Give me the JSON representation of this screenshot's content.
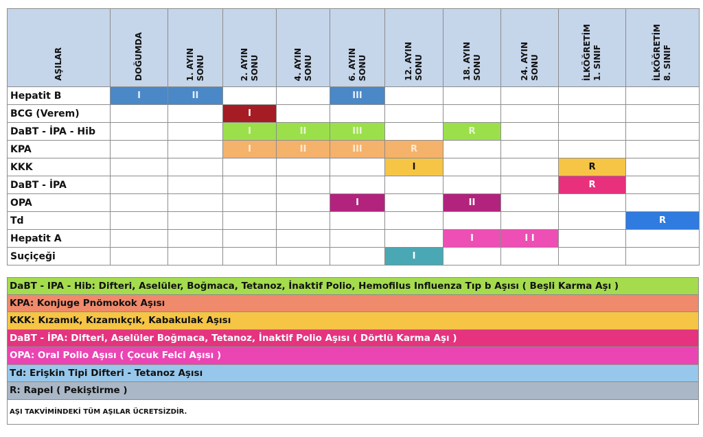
{
  "header": {
    "vaccines_label": "AŞILAR",
    "columns": [
      "DOĞUMDA",
      "1. AYIN\nSONU",
      "2. AYIN\nSONU",
      "4. AYIN\nSONU",
      "6. AYIN\nSONU",
      "12. AYIN\nSONU",
      "18. AYIN\nSONU",
      "24. AYIN\nSONU",
      "İLKÖĞRETİM\n1. SINIF",
      "İLKÖĞRETİM\n8. SINIF"
    ]
  },
  "rows": [
    {
      "name": "Hepatit B",
      "doses": [
        "I",
        "II",
        "",
        "",
        "III",
        "",
        "",
        "",
        "",
        ""
      ],
      "color": "#4a88c7",
      "text_color": "#e8eef8"
    },
    {
      "name": "BCG (Verem)",
      "doses": [
        "",
        "",
        "I",
        "",
        "",
        "",
        "",
        "",
        "",
        ""
      ],
      "color": "#a51c24",
      "text_color": "#ffffff"
    },
    {
      "name": "DaBT - İPA - Hib",
      "doses": [
        "",
        "",
        "I",
        "II",
        "III",
        "",
        "R",
        "",
        "",
        ""
      ],
      "color": "#9be04a",
      "text_color": "#e8f6d4"
    },
    {
      "name": "KPA",
      "doses": [
        "",
        "",
        "I",
        "II",
        "III",
        "R",
        "",
        "",
        "",
        ""
      ],
      "color": "#f5b26a",
      "text_color": "#fdebd6"
    },
    {
      "name": "KKK",
      "doses": [
        "",
        "",
        "",
        "",
        "",
        "I",
        "",
        "",
        "R",
        ""
      ],
      "color": "#f6c545",
      "text_color": "#111111"
    },
    {
      "name": "DaBT - İPA",
      "doses": [
        "",
        "",
        "",
        "",
        "",
        "",
        "",
        "",
        "R",
        ""
      ],
      "color": "#e8307c",
      "text_color": "#ffffff"
    },
    {
      "name": "OPA",
      "doses": [
        "",
        "",
        "",
        "",
        "I",
        "",
        "II",
        "",
        "",
        ""
      ],
      "color": "#b2237e",
      "text_color": "#ffffff"
    },
    {
      "name": "Td",
      "doses": [
        "",
        "",
        "",
        "",
        "",
        "",
        "",
        "",
        "",
        "R"
      ],
      "color": "#2f7be0",
      "text_color": "#ffffff"
    },
    {
      "name": "Hepatit A",
      "doses": [
        "",
        "",
        "",
        "",
        "",
        "",
        "I",
        "I I",
        "",
        ""
      ],
      "color": "#ee4fb4",
      "text_color": "#ffffff"
    },
    {
      "name": "Suçiçeği",
      "doses": [
        "",
        "",
        "",
        "",
        "",
        "I",
        "",
        "",
        "",
        ""
      ],
      "color": "#4aa8b4",
      "text_color": "#ffffff"
    }
  ],
  "legend": [
    {
      "text": "DaBT - IPA - Hib: Difteri, Aselüler, Boğmaca, Tetanoz, İnaktif Polio, Hemofilus Influenza Tıp b Aşısı ( Beşli Karma Aşı )",
      "bg": "#a4dc4e",
      "fg": "#111111"
    },
    {
      "text": "KPA: Konjuge Pnömokok Aşısı",
      "bg": "#f08a6c",
      "fg": "#111111"
    },
    {
      "text": "KKK: Kızamık, Kızamıkçık, Kabakulak Aşısı",
      "bg": "#f6c545",
      "fg": "#111111"
    },
    {
      "text": "DaBT - İPA: Difteri, Aselüler Boğmaca, Tetanoz, İnaktif Polio Aşısı ( Dörtlü Karma Aşı )",
      "bg": "#e5337f",
      "fg": "#ffffff"
    },
    {
      "text": "OPA: Oral Polio Aşısı ( Çocuk Felci Aşısı )",
      "bg": "#ea45b3",
      "fg": "#ffffff"
    },
    {
      "text": "Td: Erişkin Tipi Difteri - Tetanoz Aşısı",
      "bg": "#97c7ea",
      "fg": "#111111"
    },
    {
      "text": "R: Rapel ( Pekiştirme )",
      "bg": "#a9b7c6",
      "fg": "#111111"
    }
  ],
  "note": "AŞI TAKVİMİNDEKİ TÜM AŞILAR ÜCRETSİZDİR."
}
